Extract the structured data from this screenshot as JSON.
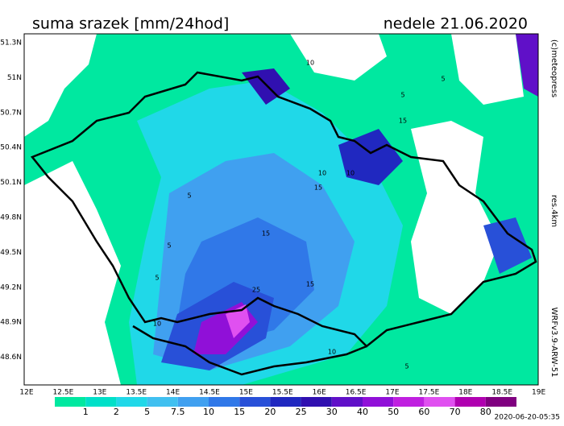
{
  "header": {
    "title": "suma srazek [mm/24hod]",
    "date": "nedele 21.06.2020"
  },
  "axes": {
    "lat_labels": [
      "51.3N",
      "51N",
      "50.7N",
      "50.4N",
      "50.1N",
      "49.8N",
      "49.5N",
      "49.2N",
      "48.9N",
      "48.6N"
    ],
    "lon_labels": [
      "12E",
      "12.5E",
      "13E",
      "13.5E",
      "14E",
      "14.5E",
      "15E",
      "15.5E",
      "16E",
      "16.5E",
      "17E",
      "17.5E",
      "18E",
      "18.5E",
      "19E"
    ]
  },
  "colorbar": {
    "labels": [
      "1",
      "2",
      "5",
      "7.5",
      "10",
      "15",
      "20",
      "25",
      "30",
      "40",
      "50",
      "60",
      "70",
      "80"
    ],
    "colors": [
      "#00e8a0",
      "#00e0c8",
      "#20d8e8",
      "#40c0f0",
      "#40a0f0",
      "#3078e8",
      "#2850d8",
      "#2028c0",
      "#3010b0",
      "#6010c8",
      "#9010d8",
      "#c020e0",
      "#e050f0",
      "#b000b0",
      "#800080"
    ]
  },
  "side": {
    "copyright": "(c)meteopress",
    "resolution": "res.4km",
    "model": "WRFv3.9-ARW-51"
  },
  "footer": {
    "timestamp": "2020-06-20-05:35"
  },
  "map": {
    "contour_labels": [
      "10",
      "5",
      "5",
      "15",
      "10",
      "10",
      "5",
      "15",
      "5",
      "15",
      "5",
      "15",
      "25",
      "10",
      "10",
      "5"
    ]
  }
}
